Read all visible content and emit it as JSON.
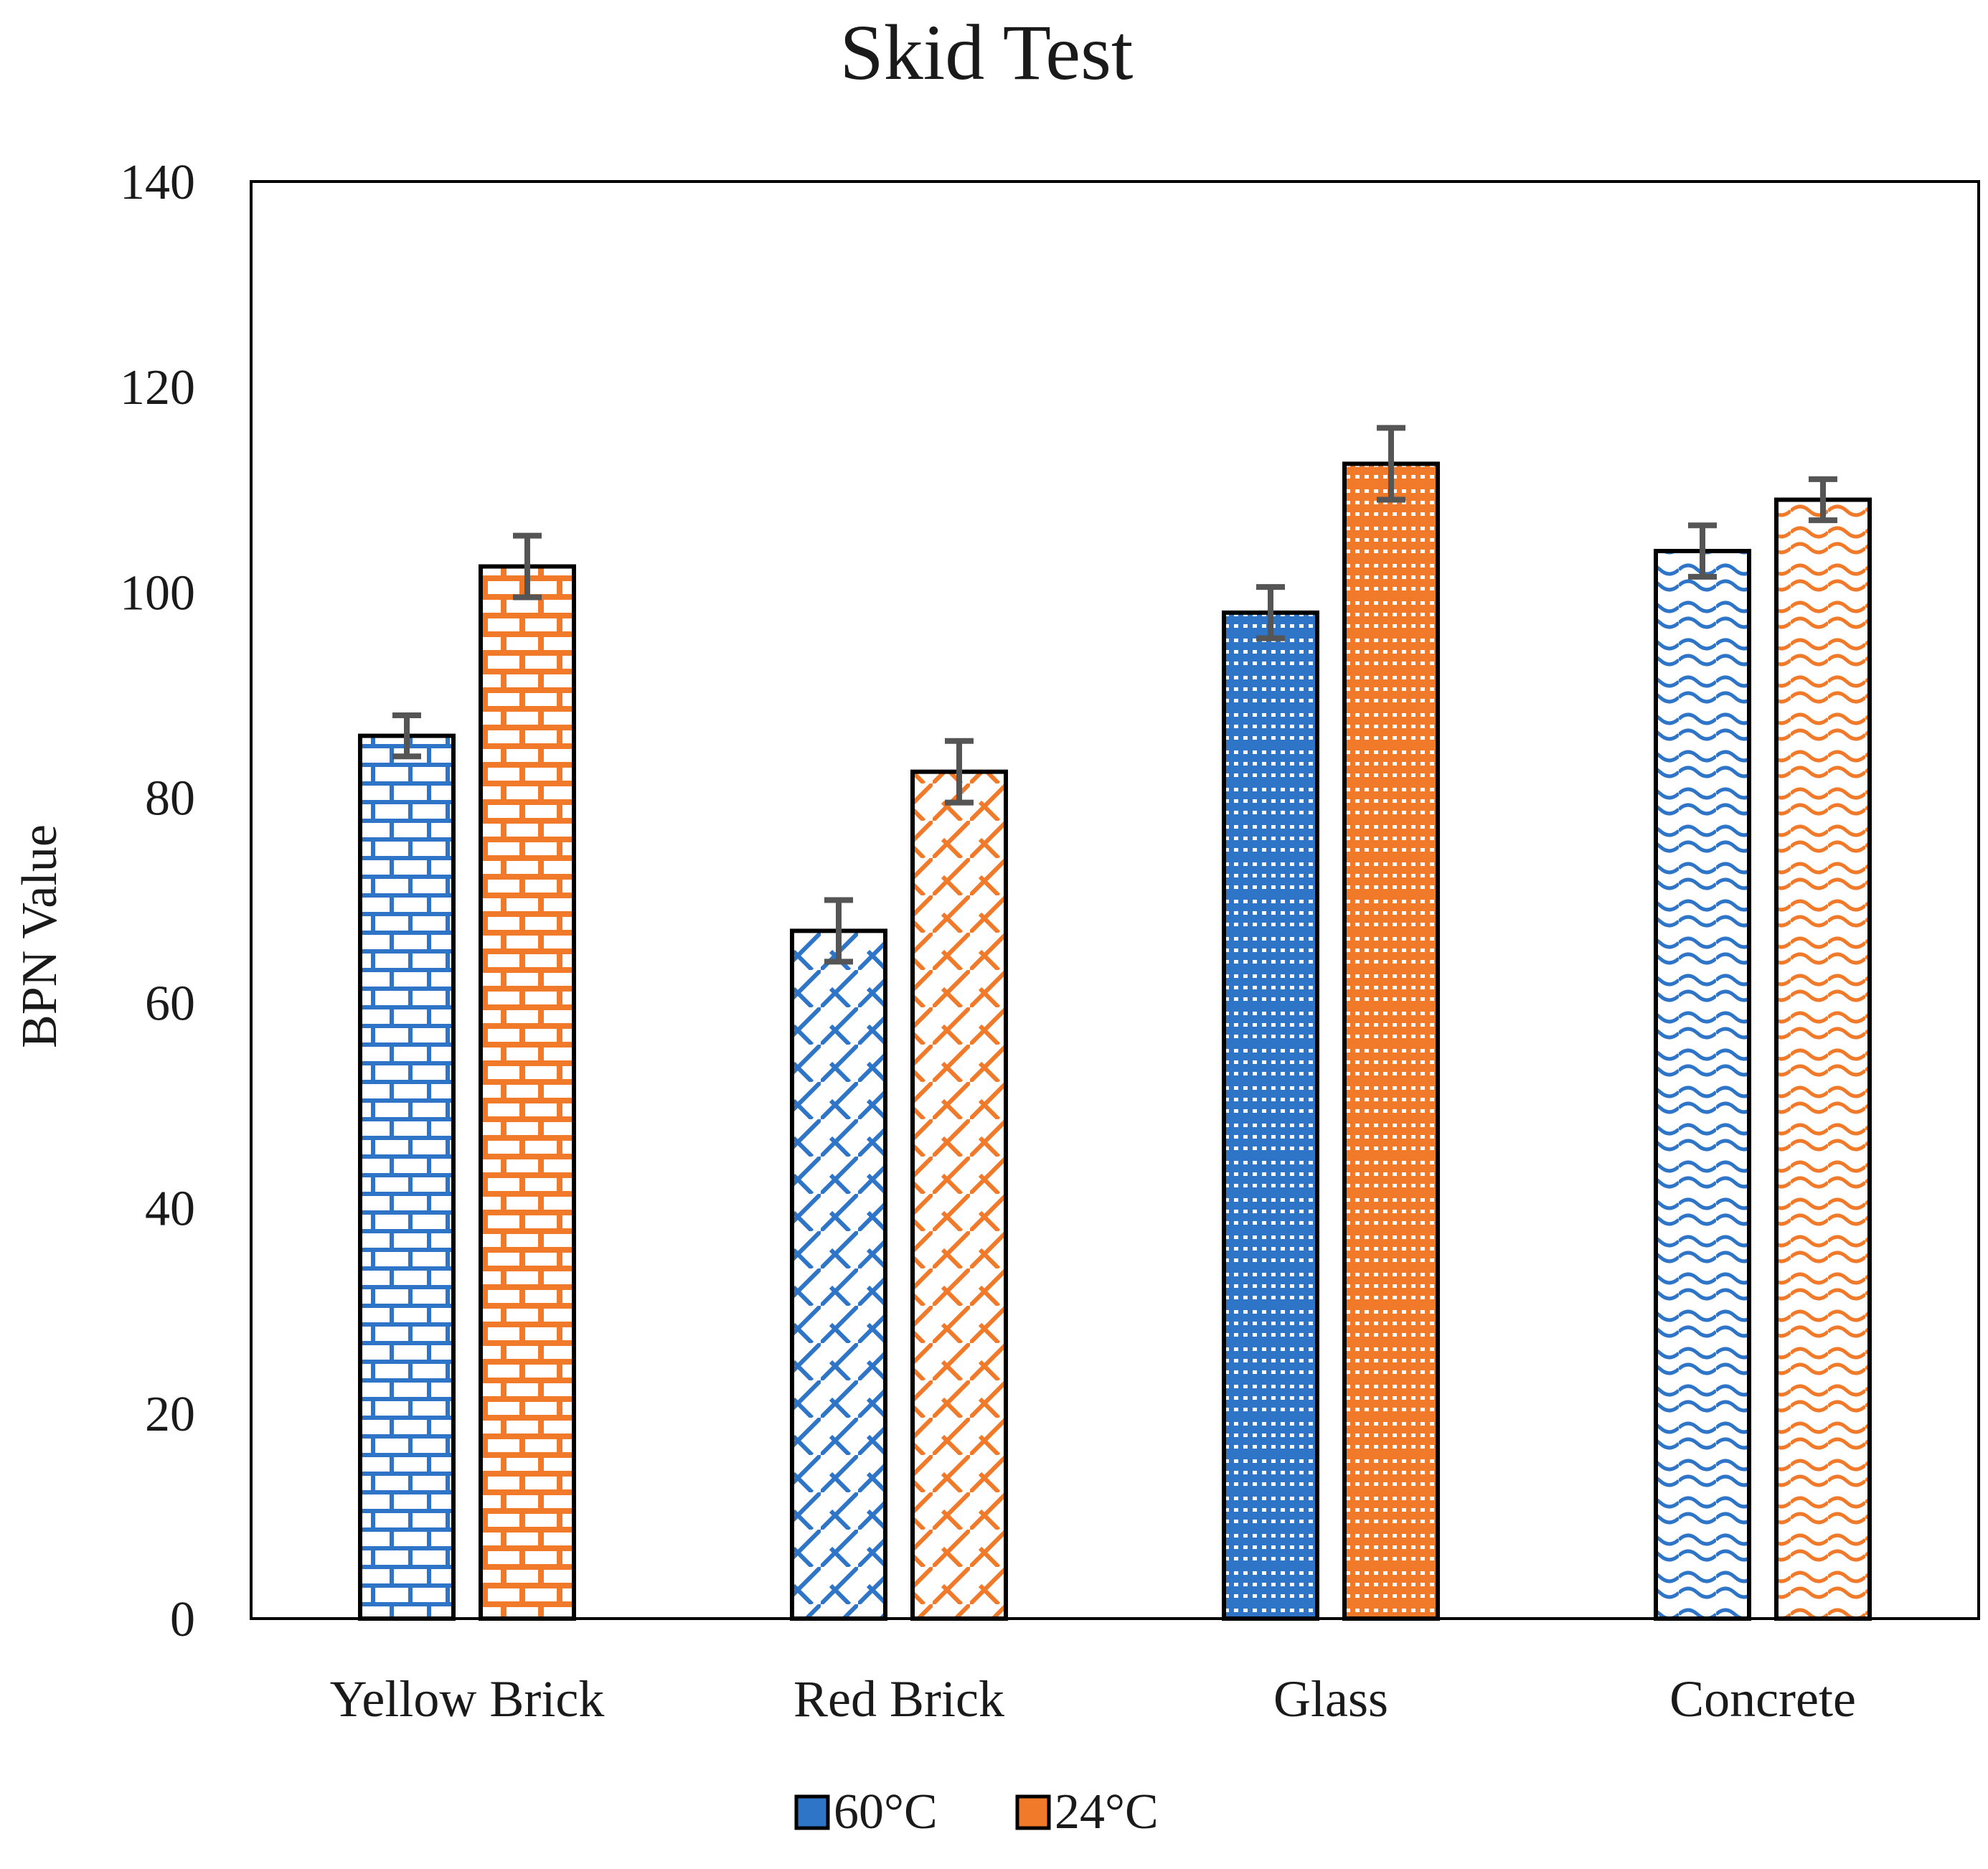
{
  "chart_data": {
    "type": "bar",
    "title": "Skid Test",
    "xlabel": "",
    "ylabel": "BPN Value",
    "ylim": [
      0,
      140
    ],
    "yticks": [
      0,
      20,
      40,
      60,
      80,
      100,
      120,
      140
    ],
    "categories": [
      "Yellow Brick",
      "Red Brick",
      "Glass",
      "Concrete"
    ],
    "series": [
      {
        "name": "60°C",
        "color": "#2E75C8",
        "patterns": [
          "brick",
          "diagonal-brick",
          "dotted-grid",
          "wave"
        ],
        "values": [
          86,
          67,
          98,
          104
        ],
        "errors": [
          2,
          3,
          2.5,
          2.5
        ]
      },
      {
        "name": "24°C",
        "color": "#F07A2A",
        "patterns": [
          "brick-large",
          "diagonal-brick",
          "dotted-grid",
          "wave"
        ],
        "values": [
          102.5,
          82.5,
          112.5,
          109
        ],
        "errors": [
          3,
          3,
          3.5,
          2
        ]
      }
    ],
    "error_bar_color": "#555555",
    "legend_position": "bottom-center",
    "grid": false
  }
}
